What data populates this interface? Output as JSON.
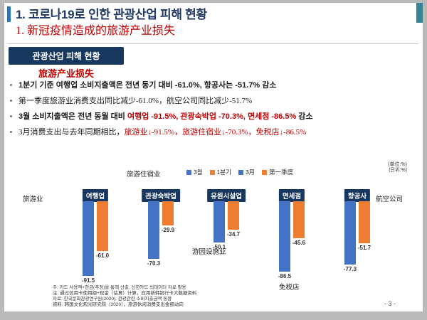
{
  "header": {
    "title_ko": "1.  코로나19로 인한 관광산업 피해 현황",
    "title_zh": "1.  新冠疫情造成的旅游产业损失"
  },
  "badge": {
    "ko": "관광산업 피해 현황",
    "zh": "旅游产业损失"
  },
  "bullets": [
    {
      "bold": true,
      "zh": false,
      "segments": [
        {
          "t": "1분기 기준 여행업 소비지출액은 전년 동기 대비 -61.0%, 항공사는 -51.7% 감소",
          "c": "k"
        }
      ]
    },
    {
      "bold": false,
      "zh": true,
      "segments": [
        {
          "t": "第一季度旅游业消费支出同比减少-61.0%，航空公司同比减少-51.7%",
          "c": "k"
        }
      ]
    },
    {
      "bold": true,
      "zh": false,
      "segments": [
        {
          "t": "3월 소비지출액은 전년 동월 대비 ",
          "c": "k"
        },
        {
          "t": "여행업 -91.5%, 관광숙박업 -70.3%, 면세점 -86.5%",
          "c": "r"
        },
        {
          "t": " 감소",
          "c": "k"
        }
      ]
    },
    {
      "bold": false,
      "zh": true,
      "segments": [
        {
          "t": "3月消费支出与去年同期相比，",
          "c": "k"
        },
        {
          "t": "旅游业↓-91.5%，旅游住宿业↓-70.3%，免税店↓-86.5%",
          "c": "r"
        }
      ]
    }
  ],
  "chart_data": {
    "type": "bar",
    "categories": [
      "여행업",
      "관광숙박업",
      "유원시설업",
      "면세점",
      "항공사"
    ],
    "series": [
      {
        "name": "3월",
        "color": "#4472c4",
        "values": [
          -91.5,
          -70.3,
          -50.1,
          -86.5,
          -77.3
        ]
      },
      {
        "name": "1분기",
        "color": "#ed7d31",
        "values": [
          -61.0,
          -29.9,
          -34.7,
          -45.6,
          -51.7
        ]
      }
    ],
    "legend": [
      {
        "label": "3월",
        "color": "#4472c4"
      },
      {
        "label": "1분기",
        "color": "#ed7d31"
      },
      {
        "label": "3月",
        "color": "#4472c4"
      },
      {
        "label": "第一季度",
        "color": "#ed7d31"
      }
    ],
    "unit_labels": [
      "(单位:%)",
      "(단위:%)"
    ],
    "annotations": {
      "top": "旅游住宿业",
      "left": "旅游业",
      "right": "航空公司",
      "middle": "游园设施业",
      "bottom": "免税店"
    },
    "ylim": [
      -100,
      0
    ],
    "grid": false,
    "legend_position": "top"
  },
  "footnotes": [
    "주: 카드 사용액+현금(추정)을 통해 산출, 신한카드 빅데이터 자료 활용",
    "注: 通过信用卡使用额+现金（估算）计算，应用新韩银行卡大数据资料",
    "자료: 한국문화관광연구원(2020), 관광관련 소비지출금액 동향",
    "资料: 韩国文化观光研究院（2020），旅游休闲消费支出金额动向"
  ],
  "page": {
    "number": "- 3 -"
  }
}
